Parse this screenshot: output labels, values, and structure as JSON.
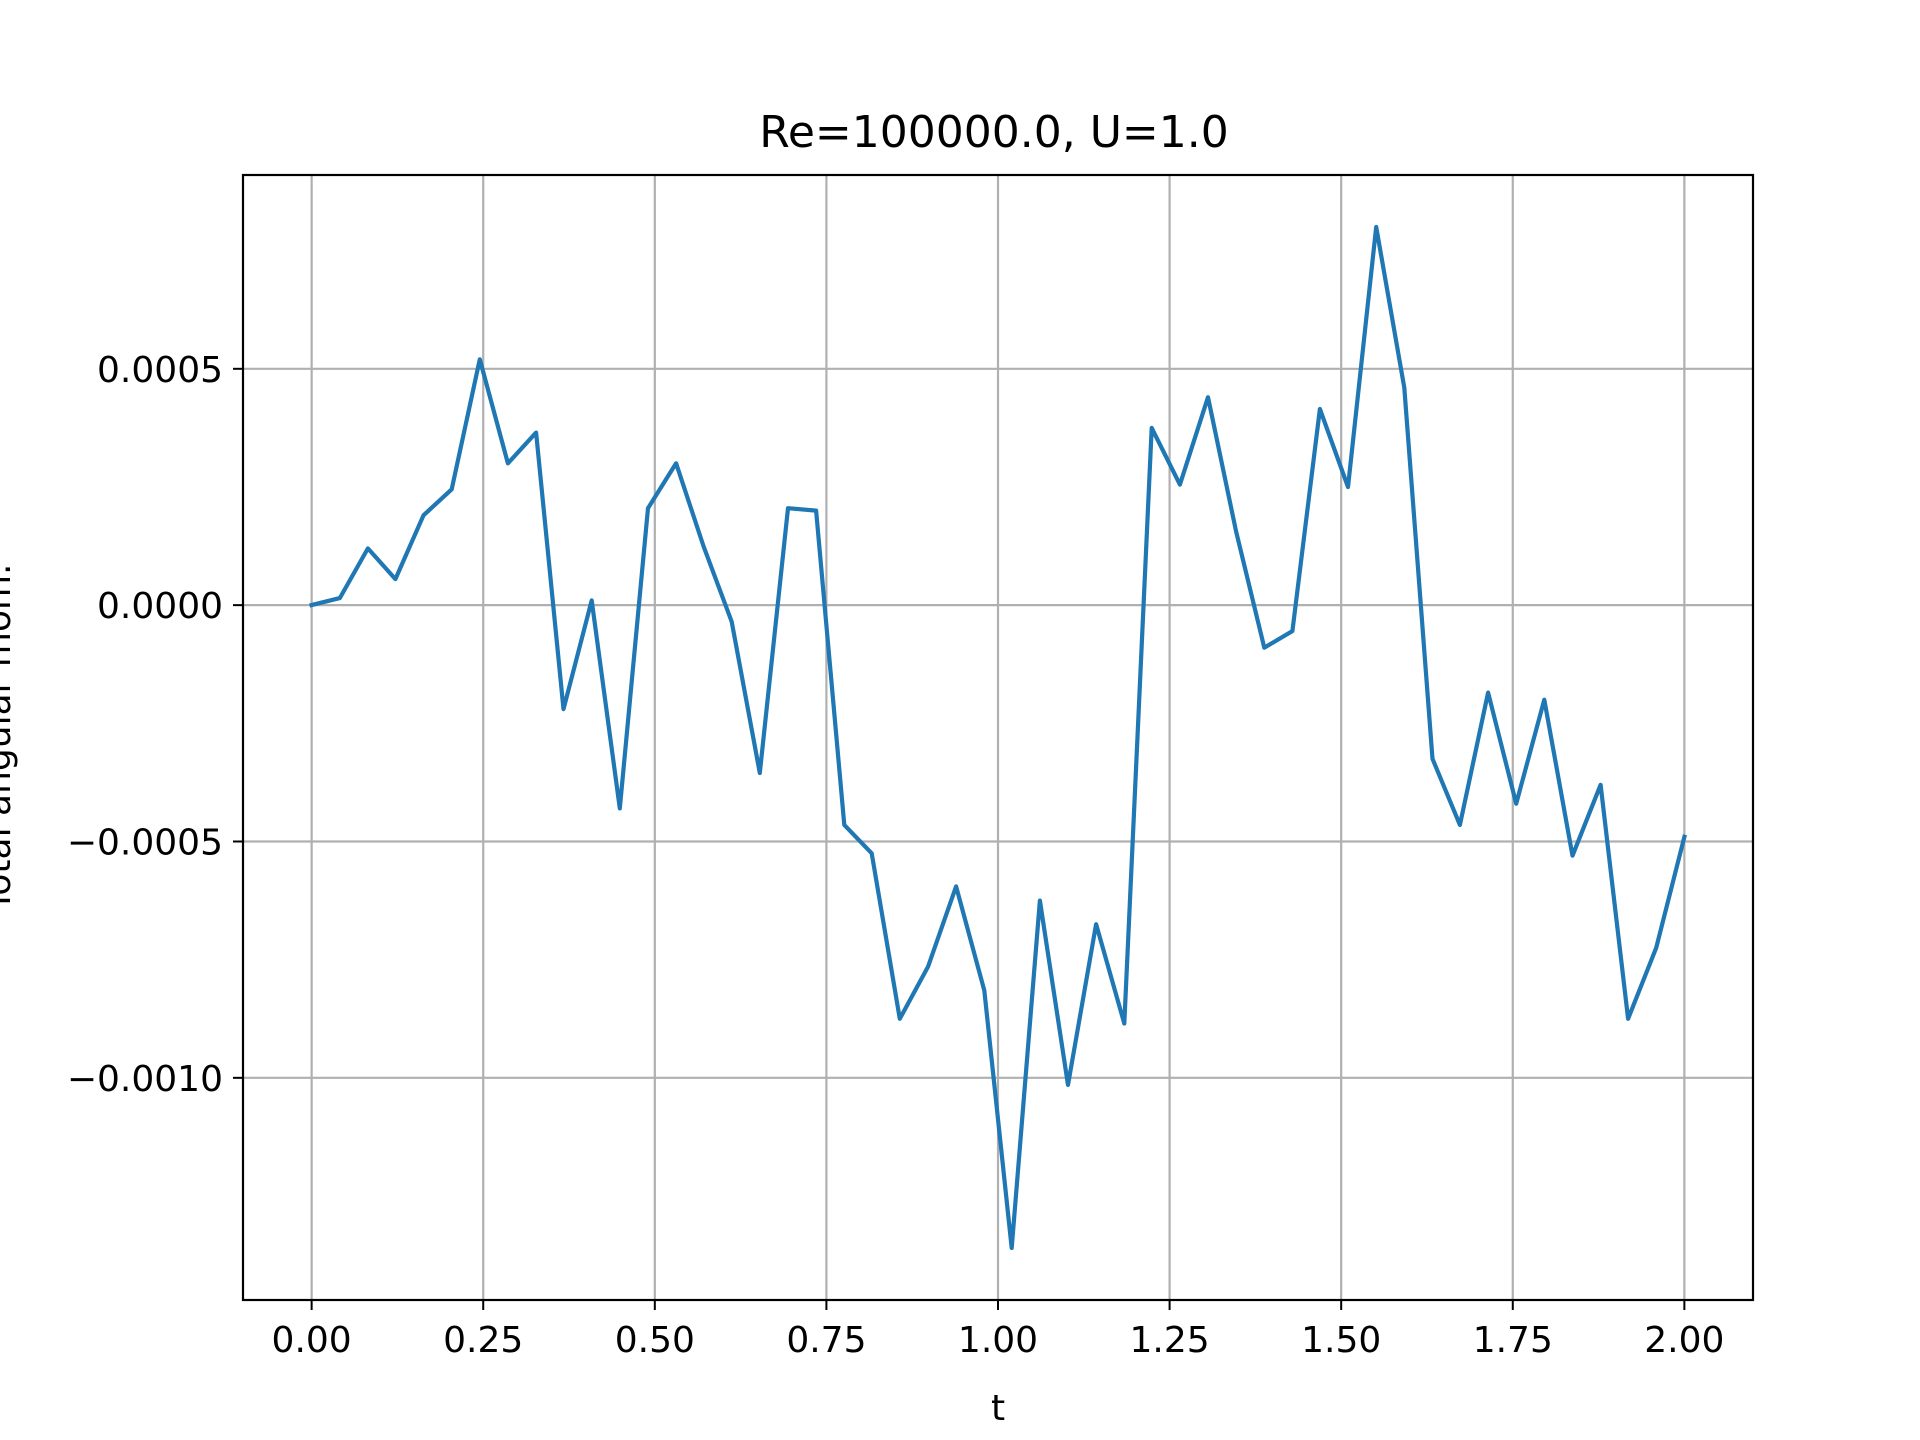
{
  "chart_data": {
    "type": "line",
    "title": "Re=100000.0, U=1.0",
    "xlabel": "t",
    "ylabel": "Total angular mom.",
    "xlim": [
      -0.1,
      2.1
    ],
    "ylim": [
      -0.00147,
      0.00091
    ],
    "grid": true,
    "x_ticks": [
      0.0,
      0.25,
      0.5,
      0.75,
      1.0,
      1.25,
      1.5,
      1.75,
      2.0
    ],
    "x_tick_labels": [
      "0.00",
      "0.25",
      "0.50",
      "0.75",
      "1.00",
      "1.25",
      "1.50",
      "1.75",
      "2.00"
    ],
    "y_ticks": [
      0.0005,
      0.0,
      -0.0005,
      -0.001
    ],
    "y_tick_labels": [
      "0.0005",
      "0.0000",
      "−0.0005",
      "−0.0010"
    ],
    "colors": {
      "series": "#1f77b4"
    },
    "series": [
      {
        "x": [
          0.0,
          0.041,
          0.082,
          0.122,
          0.163,
          0.204,
          0.245,
          0.286,
          0.327,
          0.367,
          0.408,
          0.449,
          0.49,
          0.531,
          0.571,
          0.612,
          0.653,
          0.694,
          0.735,
          0.776,
          0.816,
          0.857,
          0.898,
          0.939,
          0.98,
          1.02,
          1.061,
          1.102,
          1.143,
          1.184,
          1.224,
          1.265,
          1.306,
          1.347,
          1.388,
          1.429,
          1.469,
          1.51,
          1.551,
          1.592,
          1.633,
          1.673,
          1.714,
          1.755,
          1.796,
          1.837,
          1.878,
          1.918,
          1.959,
          2.0
        ],
        "y": [
          0.0,
          1.5e-05,
          0.00012,
          5.5e-05,
          0.00019,
          0.000245,
          0.00052,
          0.0003,
          0.000365,
          -0.00022,
          1e-05,
          -0.00043,
          0.000205,
          0.0003,
          0.000125,
          -3.5e-05,
          -0.000355,
          0.000205,
          0.0002,
          -0.000465,
          -0.000525,
          -0.000875,
          -0.000765,
          -0.000595,
          -0.000815,
          -0.00136,
          -0.000625,
          -0.001015,
          -0.000675,
          -0.000885,
          0.000375,
          0.000255,
          0.00044,
          0.000155,
          -9e-05,
          -5.5e-05,
          0.000415,
          0.00025,
          0.0008,
          0.00046,
          -0.000325,
          -0.000465,
          -0.000185,
          -0.00042,
          -0.0002,
          -0.00053,
          -0.00038,
          -0.000875,
          -0.000725,
          -0.00049
        ]
      }
    ]
  }
}
